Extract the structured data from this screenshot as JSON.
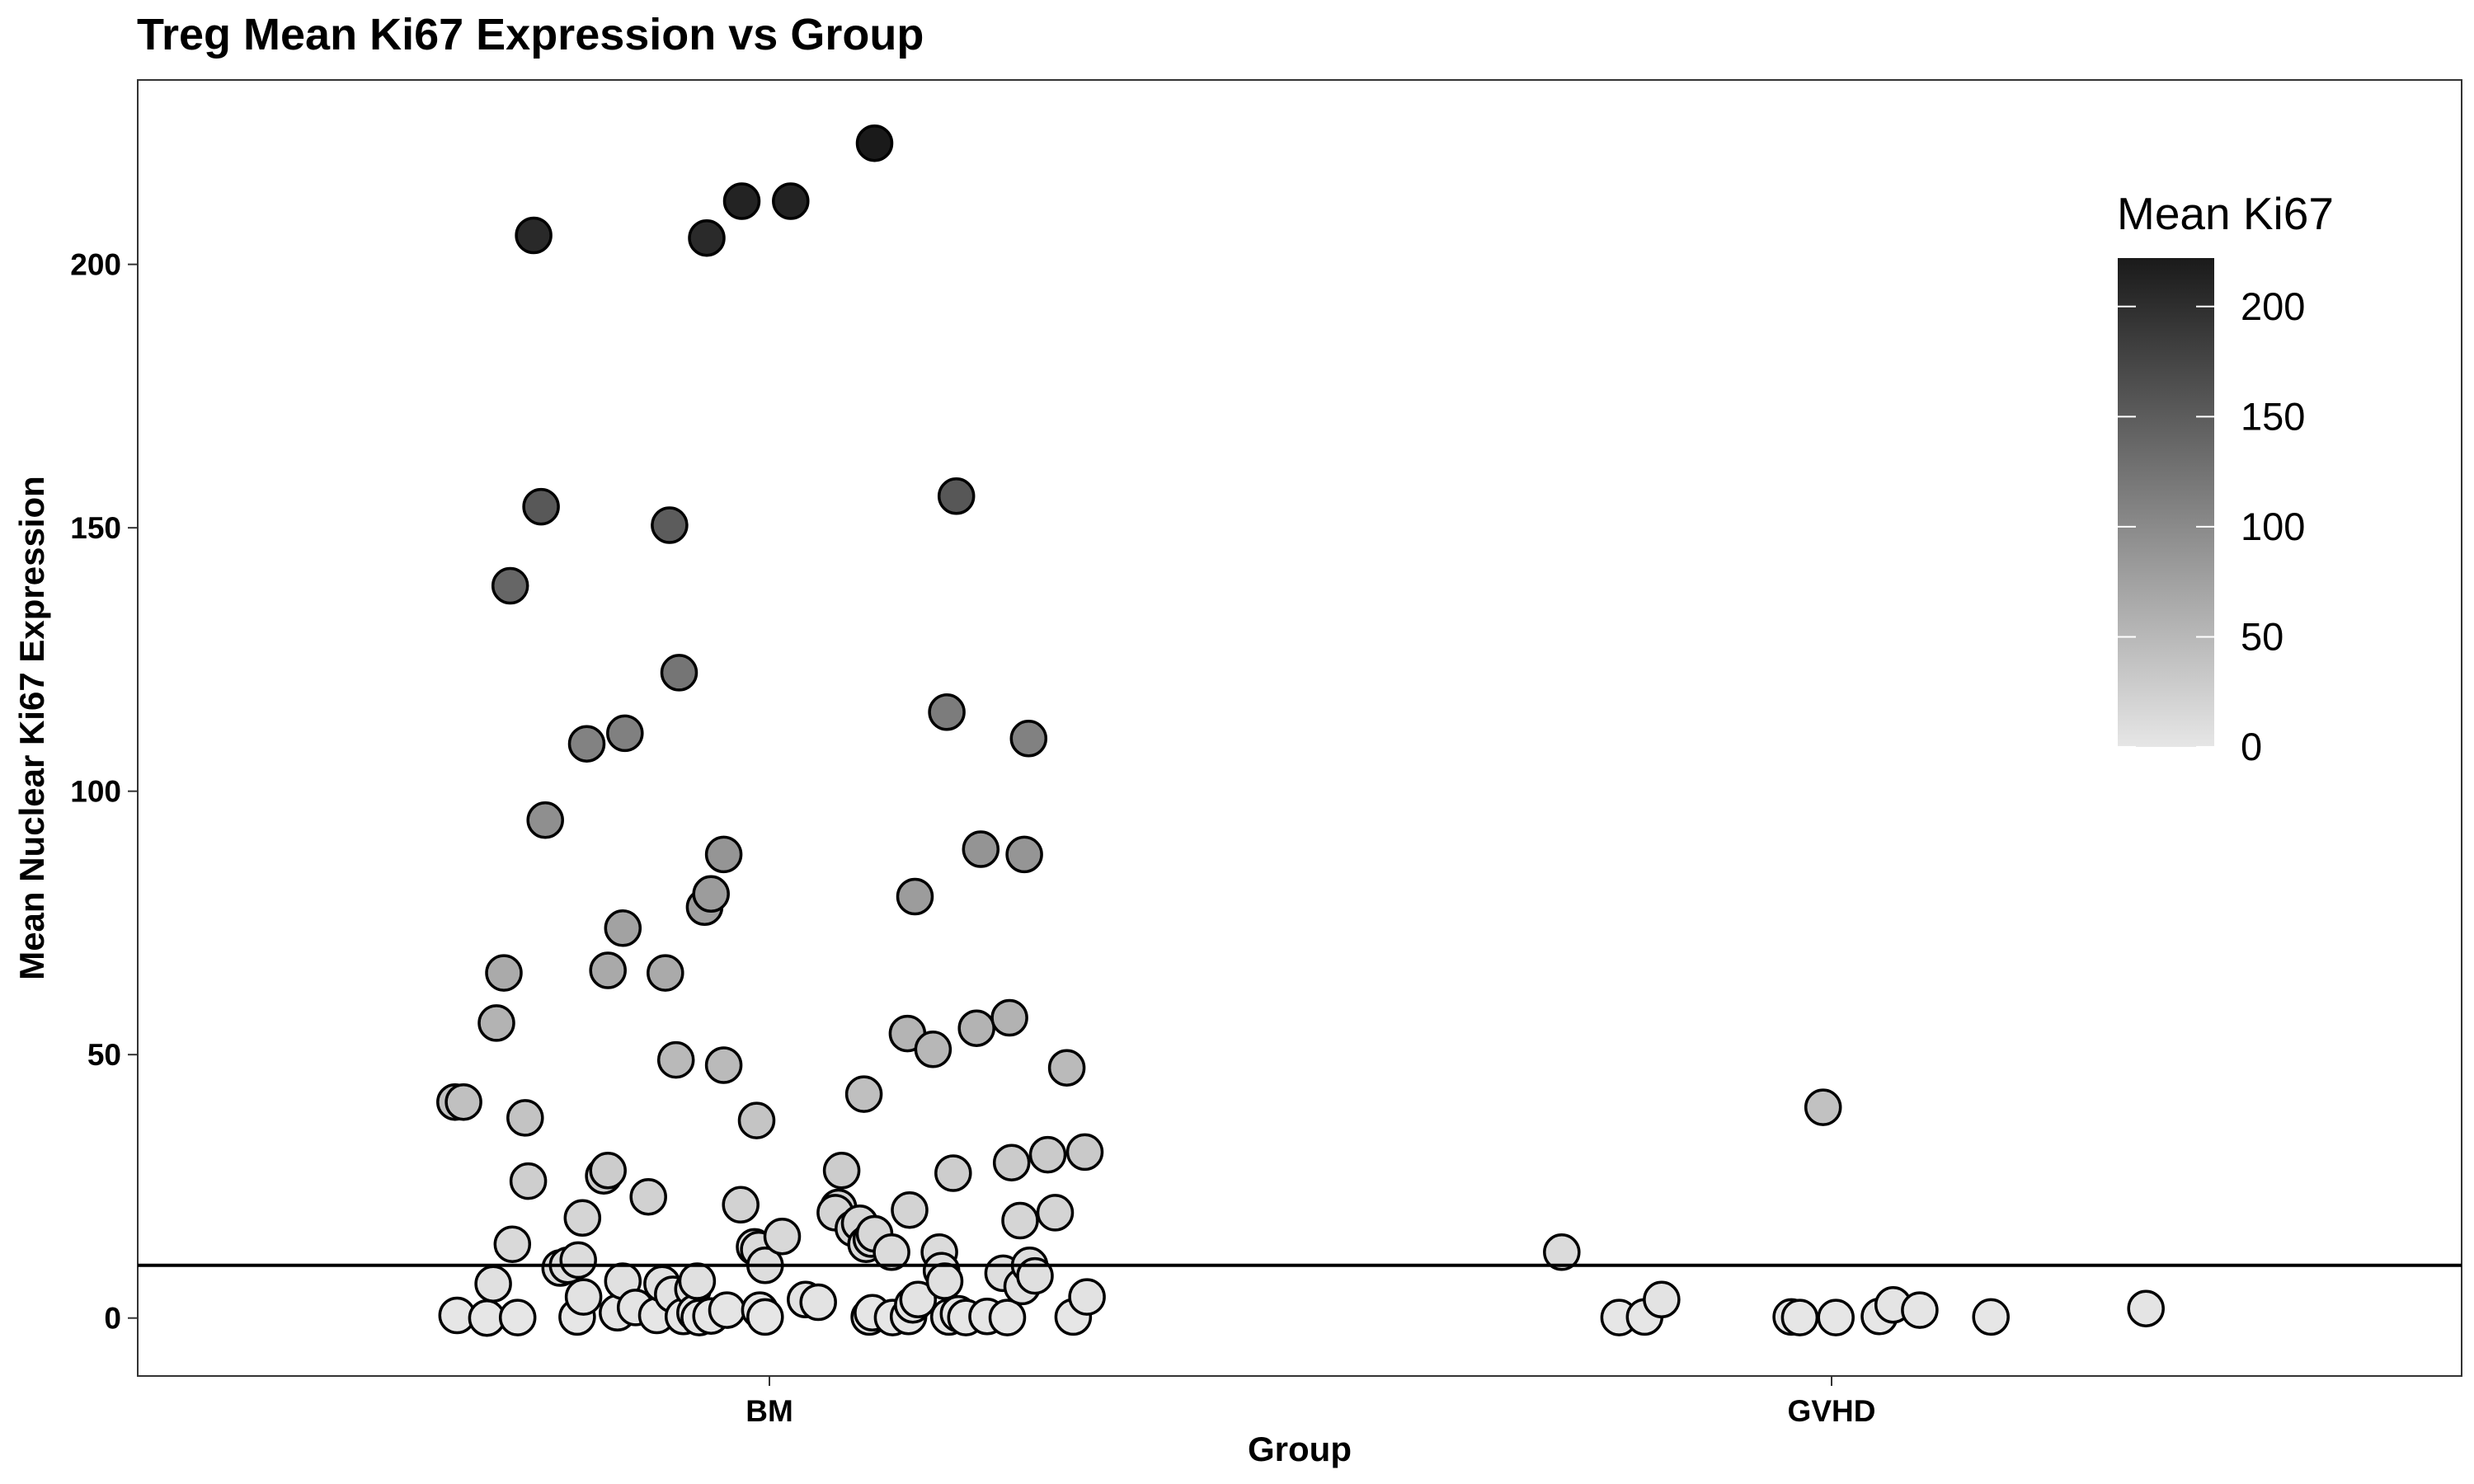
{
  "chart_data": {
    "type": "scatter",
    "title": "Treg Mean Ki67 Expression vs Group",
    "xlabel": "Group",
    "ylabel": "Mean Nuclear Ki67 Expression",
    "categories": [
      "BM",
      "GVHD"
    ],
    "yticks": [
      0,
      50,
      100,
      150,
      200
    ],
    "ylim": [
      -11,
      235
    ],
    "reference_line_y": 10,
    "grid": false,
    "legend": {
      "title": "Mean Ki67",
      "ticks": [
        0,
        50,
        100,
        150,
        200
      ],
      "range": [
        0,
        222
      ],
      "color_low": "#e6e6e6",
      "color_high": "#1a1a1a",
      "position": "top-right"
    },
    "series": [
      {
        "category": "BM",
        "points": [
          {
            "x": -0.294,
            "y": 0.5
          },
          {
            "x": -0.266,
            "y": 0.0
          },
          {
            "x": -0.237,
            "y": 0.1
          },
          {
            "x": -0.26,
            "y": 6.5
          },
          {
            "x": -0.296,
            "y": 41.0
          },
          {
            "x": -0.288,
            "y": 41.0
          },
          {
            "x": -0.257,
            "y": 56.0
          },
          {
            "x": -0.25,
            "y": 65.5
          },
          {
            "x": -0.242,
            "y": 14.0
          },
          {
            "x": -0.23,
            "y": 38.0
          },
          {
            "x": -0.227,
            "y": 26.0
          },
          {
            "x": -0.244,
            "y": 139.0
          },
          {
            "x": -0.222,
            "y": 205.5
          },
          {
            "x": -0.215,
            "y": 154.0
          },
          {
            "x": -0.211,
            "y": 94.5
          },
          {
            "x": -0.197,
            "y": 9.5
          },
          {
            "x": -0.19,
            "y": 10.0
          },
          {
            "x": -0.18,
            "y": 11.0
          },
          {
            "x": -0.176,
            "y": 19.0
          },
          {
            "x": -0.181,
            "y": 0.2
          },
          {
            "x": -0.175,
            "y": 4.0
          },
          {
            "x": -0.172,
            "y": 109.0
          },
          {
            "x": -0.156,
            "y": 27.0
          },
          {
            "x": -0.152,
            "y": 28.0
          },
          {
            "x": -0.152,
            "y": 66.0
          },
          {
            "x": -0.143,
            "y": 1.0
          },
          {
            "x": -0.138,
            "y": 7.0
          },
          {
            "x": -0.138,
            "y": 74.0
          },
          {
            "x": -0.136,
            "y": 111.0
          },
          {
            "x": -0.126,
            "y": 2.0
          },
          {
            "x": -0.114,
            "y": 23.0
          },
          {
            "x": -0.106,
            "y": 0.5
          },
          {
            "x": -0.101,
            "y": 6.5
          },
          {
            "x": -0.098,
            "y": 65.5
          },
          {
            "x": -0.094,
            "y": 150.5
          },
          {
            "x": -0.091,
            "y": 4.5
          },
          {
            "x": -0.088,
            "y": 49.0
          },
          {
            "x": -0.085,
            "y": 122.5
          },
          {
            "x": -0.081,
            "y": 0.3
          },
          {
            "x": -0.072,
            "y": 5.5
          },
          {
            "x": -0.07,
            "y": 1.0
          },
          {
            "x": -0.068,
            "y": 7.0
          },
          {
            "x": -0.066,
            "y": 0.1
          },
          {
            "x": -0.061,
            "y": 78.0
          },
          {
            "x": -0.055,
            "y": 80.5
          },
          {
            "x": -0.059,
            "y": 205.0
          },
          {
            "x": -0.055,
            "y": 0.4
          },
          {
            "x": -0.043,
            "y": 48.0
          },
          {
            "x": -0.043,
            "y": 88.0
          },
          {
            "x": -0.04,
            "y": 1.5
          },
          {
            "x": -0.027,
            "y": 21.5
          },
          {
            "x": -0.026,
            "y": 212.0
          },
          {
            "x": -0.012,
            "y": 37.5
          },
          {
            "x": -0.014,
            "y": 13.5
          },
          {
            "x": -0.01,
            "y": 13.0
          },
          {
            "x": -0.009,
            "y": 1.5
          },
          {
            "x": -0.004,
            "y": 0.2
          },
          {
            "x": -0.004,
            "y": 10.0
          },
          {
            "x": 0.012,
            "y": 15.5
          },
          {
            "x": 0.02,
            "y": 212.0
          },
          {
            "x": 0.034,
            "y": 3.5
          },
          {
            "x": 0.046,
            "y": 3.0
          },
          {
            "x": 0.065,
            "y": 21.0
          },
          {
            "x": 0.068,
            "y": 28.0
          },
          {
            "x": 0.062,
            "y": 20.0
          },
          {
            "x": 0.079,
            "y": 17.0
          },
          {
            "x": 0.085,
            "y": 18.0
          },
          {
            "x": 0.089,
            "y": 42.5
          },
          {
            "x": 0.091,
            "y": 14.0
          },
          {
            "x": 0.096,
            "y": 15.0
          },
          {
            "x": 0.099,
            "y": 16.0
          },
          {
            "x": 0.094,
            "y": 0.2
          },
          {
            "x": 0.097,
            "y": 1.0
          },
          {
            "x": 0.099,
            "y": 223.0
          },
          {
            "x": 0.115,
            "y": 12.5
          },
          {
            "x": 0.116,
            "y": 0.1
          },
          {
            "x": 0.131,
            "y": 0.3
          },
          {
            "x": 0.132,
            "y": 20.5
          },
          {
            "x": 0.13,
            "y": 54.0
          },
          {
            "x": 0.135,
            "y": 2.5
          },
          {
            "x": 0.137,
            "y": 80.0
          },
          {
            "x": 0.14,
            "y": 3.5
          },
          {
            "x": 0.154,
            "y": 51.0
          },
          {
            "x": 0.16,
            "y": 12.5
          },
          {
            "x": 0.162,
            "y": 9.0
          },
          {
            "x": 0.165,
            "y": 7.0
          },
          {
            "x": 0.167,
            "y": 115.0
          },
          {
            "x": 0.169,
            "y": 0.2
          },
          {
            "x": 0.173,
            "y": 27.5
          },
          {
            "x": 0.176,
            "y": 156.0
          },
          {
            "x": 0.178,
            "y": 0.8
          },
          {
            "x": 0.185,
            "y": 0.1
          },
          {
            "x": 0.195,
            "y": 55.0
          },
          {
            "x": 0.199,
            "y": 89.0
          },
          {
            "x": 0.205,
            "y": 0.3
          },
          {
            "x": 0.22,
            "y": 8.5
          },
          {
            "x": 0.224,
            "y": 0.1
          },
          {
            "x": 0.228,
            "y": 29.5
          },
          {
            "x": 0.226,
            "y": 57.0
          },
          {
            "x": 0.236,
            "y": 18.5
          },
          {
            "x": 0.238,
            "y": 6.0
          },
          {
            "x": 0.24,
            "y": 88.0
          },
          {
            "x": 0.244,
            "y": 110.0
          },
          {
            "x": 0.245,
            "y": 10.0
          },
          {
            "x": 0.25,
            "y": 8.0
          },
          {
            "x": 0.262,
            "y": 31.0
          },
          {
            "x": 0.269,
            "y": 20.0
          },
          {
            "x": 0.28,
            "y": 47.5
          },
          {
            "x": 0.286,
            "y": 0.2
          },
          {
            "x": 0.299,
            "y": 4.0
          },
          {
            "x": 0.297,
            "y": 31.5
          }
        ]
      },
      {
        "category": "GVHD",
        "points": [
          {
            "x": -0.254,
            "y": 12.5
          },
          {
            "x": -0.2,
            "y": 0.1
          },
          {
            "x": -0.176,
            "y": 0.2
          },
          {
            "x": -0.16,
            "y": 3.5
          },
          {
            "x": -0.008,
            "y": 40.0
          },
          {
            "x": -0.038,
            "y": 0.2
          },
          {
            "x": -0.03,
            "y": 0.1
          },
          {
            "x": 0.004,
            "y": 0.1
          },
          {
            "x": 0.045,
            "y": 0.3
          },
          {
            "x": 0.058,
            "y": 2.5
          },
          {
            "x": 0.083,
            "y": 1.5
          },
          {
            "x": 0.15,
            "y": 0.2
          },
          {
            "x": 0.296,
            "y": 1.8
          }
        ]
      }
    ]
  }
}
